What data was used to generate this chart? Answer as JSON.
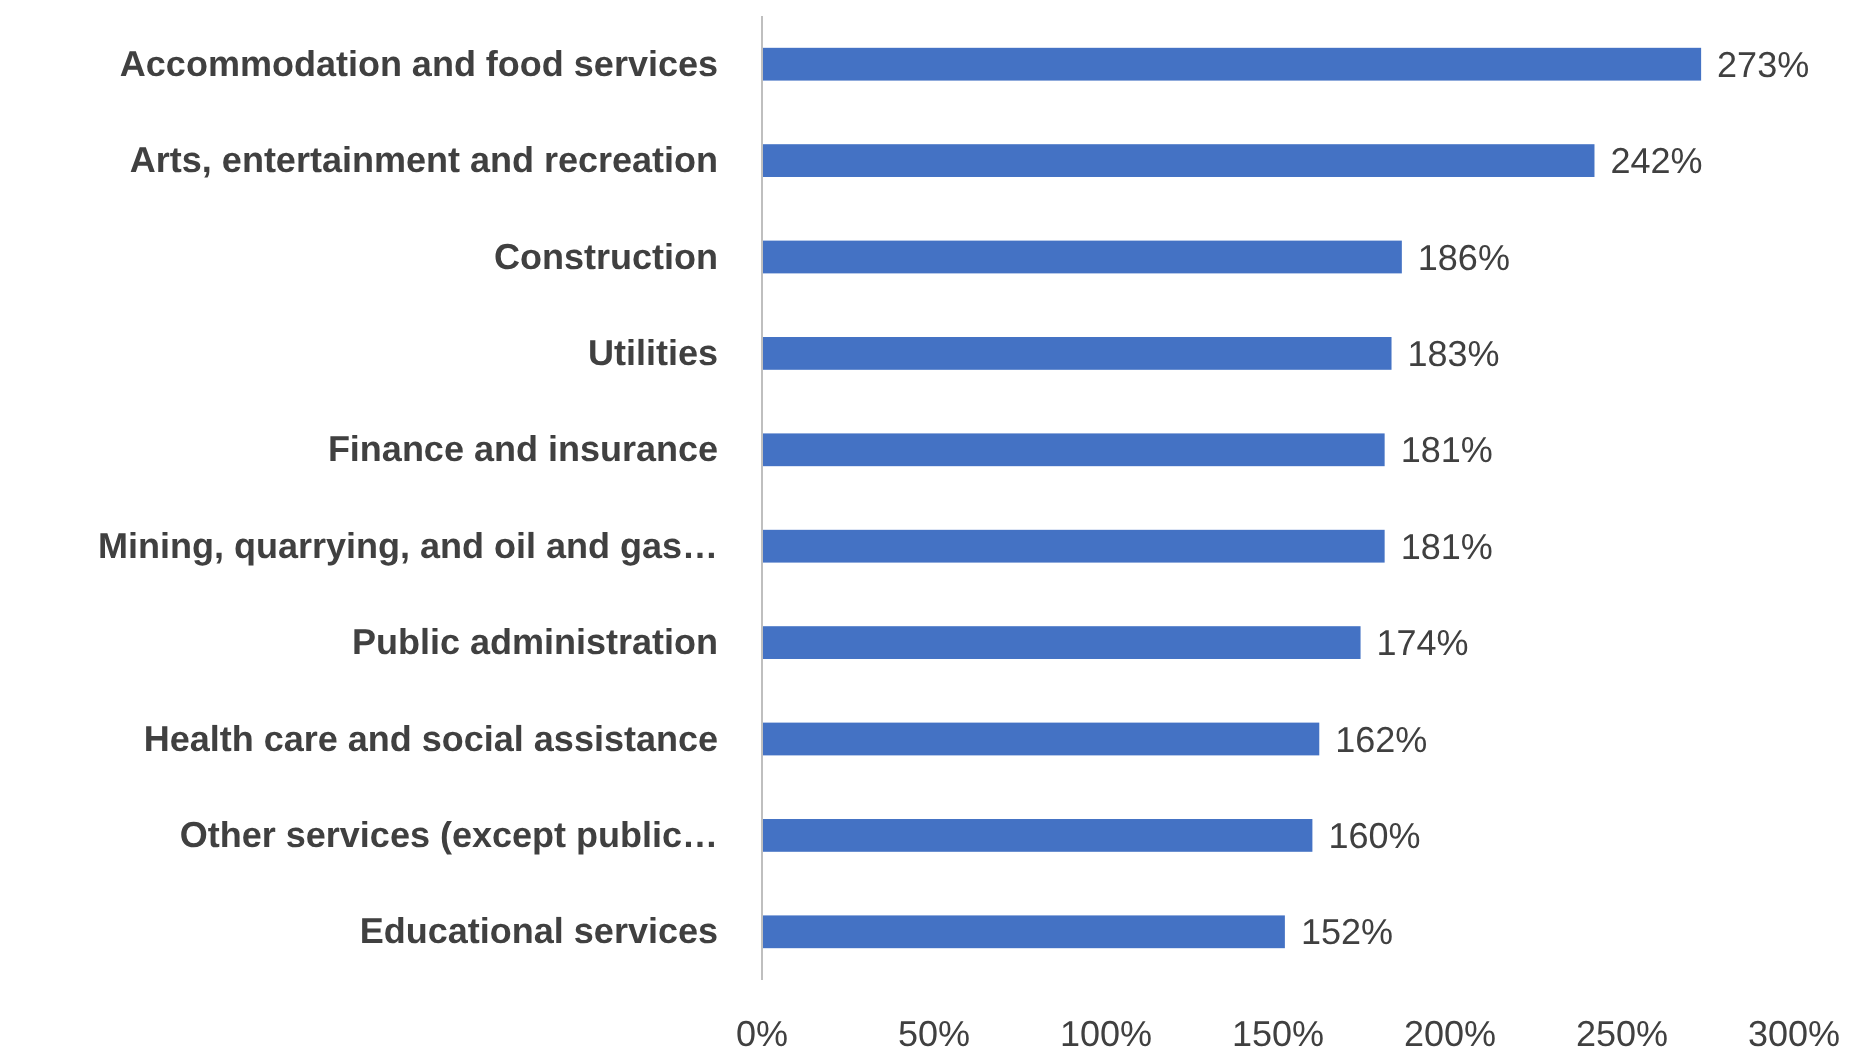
{
  "chart_data": {
    "type": "bar",
    "orientation": "horizontal",
    "categories": [
      "Accommodation and food services",
      "Arts, entertainment and recreation",
      "Construction",
      "Utilities",
      "Finance and insurance",
      "Mining, quarrying, and oil and gas…",
      "Public administration",
      "Health care and social assistance",
      "Other services (except public…",
      "Educational services"
    ],
    "values": [
      273,
      242,
      186,
      183,
      181,
      181,
      174,
      162,
      160,
      152
    ],
    "color": "#4472c4",
    "value_labels": [
      "273%",
      "242%",
      "186%",
      "183%",
      "181%",
      "181%",
      "174%",
      "162%",
      "160%",
      "152%"
    ],
    "xlim": [
      0,
      300
    ],
    "xticks": [
      {
        "value": 0,
        "label": "0%"
      },
      {
        "value": 50,
        "label": "50%"
      },
      {
        "value": 100,
        "label": "100%"
      },
      {
        "value": 150,
        "label": "150%"
      },
      {
        "value": 200,
        "label": "200%"
      },
      {
        "value": 250,
        "label": "250%"
      },
      {
        "value": 300,
        "label": "300%"
      }
    ],
    "grid": false
  }
}
